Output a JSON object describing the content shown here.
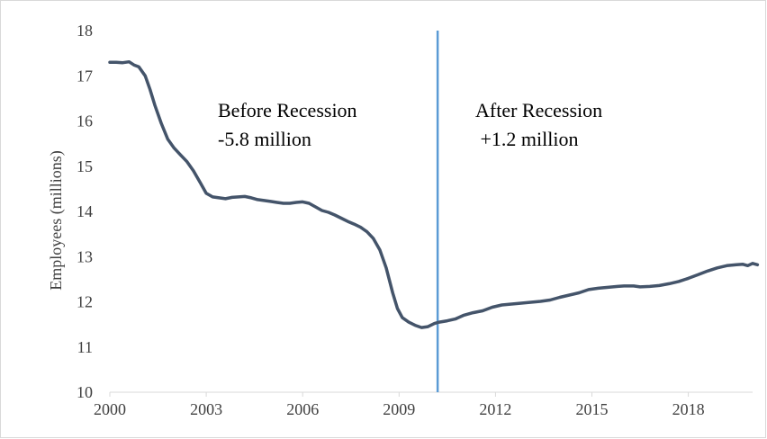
{
  "chart_data": {
    "type": "line",
    "title": "",
    "xlabel": "",
    "ylabel": "Employees (millions)",
    "ylim": [
      10,
      18
    ],
    "xlim": [
      2000,
      2020
    ],
    "yticks": [
      "10",
      "11",
      "12",
      "13",
      "14",
      "15",
      "16",
      "17",
      "18"
    ],
    "xticks": [
      "2000",
      "2003",
      "2006",
      "2009",
      "2012",
      "2015",
      "2018"
    ],
    "grid": false,
    "legend": "none",
    "series": [
      {
        "color": "#44546a",
        "x": [
          2000.0,
          2000.2,
          2000.4,
          2000.6,
          2000.75,
          2000.9,
          2001.1,
          2001.25,
          2001.4,
          2001.6,
          2001.8,
          2002.0,
          2002.2,
          2002.4,
          2002.6,
          2002.8,
          2003.0,
          2003.2,
          2003.4,
          2003.6,
          2003.8,
          2004.0,
          2004.2,
          2004.4,
          2004.6,
          2004.8,
          2005.0,
          2005.2,
          2005.4,
          2005.6,
          2005.8,
          2006.0,
          2006.2,
          2006.4,
          2006.6,
          2006.8,
          2007.0,
          2007.2,
          2007.4,
          2007.6,
          2007.8,
          2008.0,
          2008.2,
          2008.4,
          2008.6,
          2008.8,
          2008.95,
          2009.1,
          2009.3,
          2009.5,
          2009.7,
          2009.9,
          2010.1,
          2010.25,
          2010.5,
          2010.75,
          2011.0,
          2011.3,
          2011.6,
          2011.9,
          2012.2,
          2012.5,
          2012.8,
          2013.1,
          2013.4,
          2013.7,
          2014.0,
          2014.3,
          2014.6,
          2014.9,
          2015.2,
          2015.5,
          2015.8,
          2016.0,
          2016.3,
          2016.5,
          2016.8,
          2017.1,
          2017.4,
          2017.7,
          2018.0,
          2018.3,
          2018.6,
          2018.9,
          2019.2,
          2019.5,
          2019.7,
          2019.85,
          2020.0,
          2020.15
        ],
        "y": [
          17.3,
          17.3,
          17.29,
          17.31,
          17.24,
          17.2,
          17.0,
          16.7,
          16.35,
          15.95,
          15.6,
          15.4,
          15.25,
          15.1,
          14.9,
          14.65,
          14.4,
          14.32,
          14.3,
          14.28,
          14.31,
          14.32,
          14.33,
          14.3,
          14.26,
          14.24,
          14.22,
          14.2,
          14.18,
          14.18,
          14.2,
          14.21,
          14.18,
          14.1,
          14.02,
          13.98,
          13.92,
          13.85,
          13.78,
          13.72,
          13.65,
          13.55,
          13.4,
          13.15,
          12.75,
          12.2,
          11.85,
          11.65,
          11.55,
          11.48,
          11.43,
          11.45,
          11.52,
          11.55,
          11.58,
          11.62,
          11.7,
          11.76,
          11.8,
          11.88,
          11.93,
          11.95,
          11.97,
          11.99,
          12.01,
          12.04,
          12.1,
          12.15,
          12.2,
          12.27,
          12.3,
          12.32,
          12.34,
          12.35,
          12.35,
          12.33,
          12.34,
          12.36,
          12.4,
          12.45,
          12.52,
          12.6,
          12.68,
          12.75,
          12.8,
          12.82,
          12.83,
          12.8,
          12.85,
          12.82
        ]
      }
    ],
    "recession_line": {
      "x": 2010.2,
      "color": "#5b9bd5"
    },
    "annotations": [
      {
        "lines": [
          "Before Recession",
          "-5.8 million"
        ]
      },
      {
        "lines": [
          "After Recession",
          " +1.2 million"
        ]
      }
    ]
  }
}
